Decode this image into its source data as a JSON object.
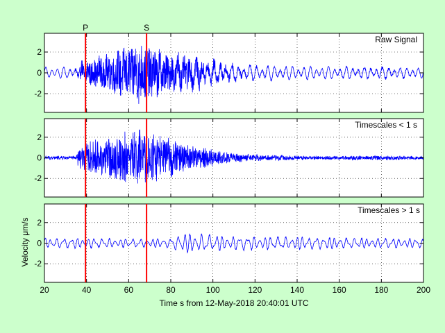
{
  "figure": {
    "background": "#ccffcc",
    "plot_background": "#ffffff",
    "trace_color": "#0000ff",
    "pick_color": "#ff0000"
  },
  "chart_data": [
    {
      "type": "line",
      "panel": "raw",
      "annotation": "Raw Signal",
      "xlim": [
        20,
        200
      ],
      "ylim": [
        -3.8,
        3.8
      ],
      "yticks": [
        -2,
        0,
        2
      ],
      "ytick_labels": [
        "-2",
        "0",
        "2"
      ],
      "grid": true,
      "envelope": {
        "x": [
          20,
          30,
          34,
          36,
          40,
          50,
          60,
          65,
          70,
          80,
          90,
          100,
          110,
          120,
          150,
          180,
          200
        ],
        "amplitude": [
          0.4,
          0.5,
          0.5,
          1.0,
          1.5,
          2.0,
          2.8,
          3.2,
          2.8,
          2.0,
          1.6,
          1.1,
          0.8,
          0.6,
          0.5,
          0.6,
          0.5
        ]
      }
    },
    {
      "type": "line",
      "panel": "short",
      "annotation": "Timescales < 1 s",
      "xlim": [
        20,
        200
      ],
      "ylim": [
        -3.8,
        3.8
      ],
      "yticks": [
        -2,
        0,
        2
      ],
      "ytick_labels": [
        "-2",
        "0",
        "2"
      ],
      "grid": true,
      "envelope": {
        "x": [
          20,
          35,
          36,
          40,
          50,
          60,
          65,
          70,
          80,
          90,
          100,
          110,
          120,
          150,
          180,
          200
        ],
        "amplitude": [
          0.2,
          0.2,
          1.0,
          1.6,
          2.2,
          2.8,
          3.2,
          2.8,
          2.0,
          1.4,
          0.9,
          0.5,
          0.35,
          0.2,
          0.25,
          0.2
        ]
      }
    },
    {
      "type": "line",
      "panel": "long",
      "annotation": "Timescales > 1 s",
      "xlim": [
        20,
        200
      ],
      "ylim": [
        -3.8,
        3.8
      ],
      "yticks": [
        -2,
        0,
        2
      ],
      "ytick_labels": [
        "-2",
        "0",
        "2"
      ],
      "xticks": [
        20,
        40,
        60,
        80,
        100,
        120,
        140,
        160,
        180,
        200
      ],
      "xtick_labels": [
        "20",
        "40",
        "60",
        "80",
        "100",
        "120",
        "140",
        "160",
        "180",
        "200"
      ],
      "grid": true,
      "ylabel": "Velocity μm/s",
      "xlabel": "Time s from 12-May-2018 20:40:01 UTC",
      "envelope": {
        "x": [
          20,
          40,
          60,
          80,
          85,
          95,
          110,
          130,
          160,
          180,
          200
        ],
        "amplitude": [
          0.55,
          0.55,
          0.45,
          0.5,
          1.05,
          0.95,
          0.75,
          0.7,
          0.6,
          0.55,
          0.5
        ]
      }
    }
  ],
  "picks": [
    {
      "label": "P",
      "time": 39.5
    },
    {
      "label": "S",
      "time": 68.5
    }
  ]
}
